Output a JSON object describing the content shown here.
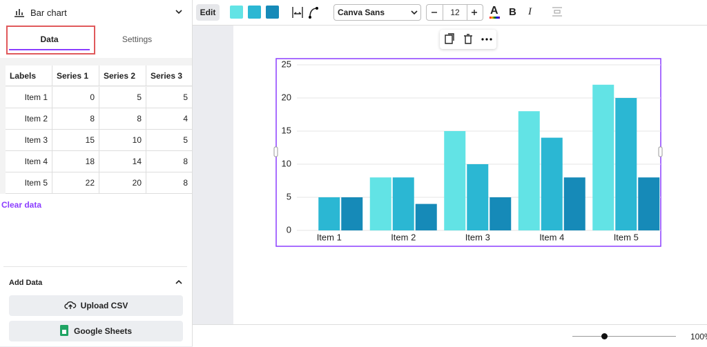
{
  "sidebar": {
    "chart_type": "Bar chart",
    "tabs": [
      "Data",
      "Settings"
    ],
    "labels_header": "Labels",
    "clear": "Clear data",
    "add_data": "Add Data",
    "buttons": [
      "Upload CSV",
      "Google Sheets"
    ]
  },
  "toolbar": {
    "edit": "Edit",
    "font": "Canva Sans",
    "font_size": 12,
    "bold": "B",
    "italic": "I",
    "zoom": "100%"
  },
  "chart_data": {
    "type": "bar",
    "categories": [
      "Item 1",
      "Item 2",
      "Item 3",
      "Item 4",
      "Item 5"
    ],
    "series": [
      {
        "name": "Series 1",
        "color": "#62e3e5",
        "values": [
          0,
          8,
          15,
          18,
          22
        ]
      },
      {
        "name": "Series 2",
        "color": "#2bb7d3",
        "values": [
          5,
          8,
          10,
          14,
          20
        ]
      },
      {
        "name": "Series 3",
        "color": "#168ab8",
        "values": [
          5,
          4,
          5,
          8,
          8
        ]
      }
    ],
    "ylim": [
      0,
      25
    ],
    "yticks": [
      0,
      5,
      10,
      15,
      20,
      25
    ],
    "grid": true
  }
}
